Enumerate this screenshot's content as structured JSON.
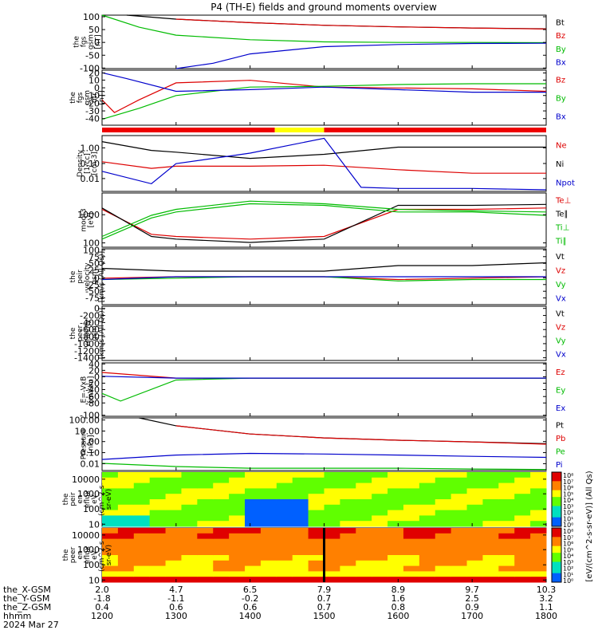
{
  "title": "P4 (TH-E) fields and ground moments overview",
  "panels": [
    {
      "ylabel": [
        "the",
        "fgs",
        "gsm",
        "[nT]"
      ],
      "ticks": [
        "100",
        "50",
        "0",
        "-50",
        "-100"
      ],
      "legend": [
        {
          "t": "Bt",
          "c": "#000000"
        },
        {
          "t": "Bz",
          "c": "#dd0000"
        },
        {
          "t": "By",
          "c": "#00bb00"
        },
        {
          "t": "Bx",
          "c": "#0000cc"
        }
      ]
    },
    {
      "ylabel": [
        "the",
        "fgs",
        "gsm",
        "dtr",
        "[nT]"
      ],
      "ticks": [
        "20",
        "10",
        "0",
        "-10",
        "-20",
        "-30",
        "-40"
      ],
      "legend": [
        {
          "t": "Bz",
          "c": "#dd0000"
        },
        {
          "t": "By",
          "c": "#00bb00"
        },
        {
          "t": "Bx",
          "c": "#0000cc"
        }
      ]
    },
    {
      "ylabel": [
        "Density",
        "[1/cc]",
        "[cm-3]"
      ],
      "ticks": [
        "1.00",
        "0.10",
        "0.01"
      ],
      "legend": [
        {
          "t": "Ne",
          "c": "#dd0000"
        },
        {
          "t": "Ni",
          "c": "#000000"
        },
        {
          "t": "Npot",
          "c": "#0000cc"
        }
      ]
    },
    {
      "ylabel": [
        "moqt3",
        "[eV]"
      ],
      "ticks": [
        "1000",
        "100"
      ],
      "legend": [
        {
          "t": "Te⊥",
          "c": "#dd0000"
        },
        {
          "t": "Te∥",
          "c": "#000000"
        },
        {
          "t": "Ti⊥",
          "c": "#00bb00"
        },
        {
          "t": "Ti∥",
          "c": "#00bb00"
        }
      ]
    },
    {
      "ylabel": [
        "the",
        "peir",
        "velocity",
        "gsm",
        "[km/s (All Qs)]"
      ],
      "ticks": [
        "100",
        "75",
        "50",
        "25",
        "0",
        "-25",
        "-50",
        "-75",
        "-100"
      ],
      "legend": [
        {
          "t": "Vt",
          "c": "#000000"
        },
        {
          "t": "Vz",
          "c": "#dd0000"
        },
        {
          "t": "Vy",
          "c": "#00bb00"
        },
        {
          "t": "Vx",
          "c": "#0000cc"
        }
      ]
    },
    {
      "ylabel": [
        "the",
        "peer",
        "velocity",
        "gsm",
        "[km/s (All Qs)]"
      ],
      "ticks": [
        "0",
        "-200",
        "-400",
        "-600",
        "-800",
        "-1000",
        "-1200",
        "-1400"
      ],
      "legend": [
        {
          "t": "Vt",
          "c": "#000000"
        },
        {
          "t": "Vz",
          "c": "#dd0000"
        },
        {
          "t": "Vy",
          "c": "#00bb00"
        },
        {
          "t": "Vx",
          "c": "#0000cc"
        }
      ]
    },
    {
      "ylabel": [
        "E=-VxB",
        "[mV/m]"
      ],
      "ticks": [
        "40",
        "20",
        "0",
        "-20",
        "-40",
        "-60",
        "-80",
        "-100"
      ],
      "legend": [
        {
          "t": "Ez",
          "c": "#dd0000"
        },
        {
          "t": "Ey",
          "c": "#00bb00"
        },
        {
          "t": "Ex",
          "c": "#0000cc"
        }
      ]
    },
    {
      "ylabel": [
        "Pressure",
        "[nPa]"
      ],
      "ticks": [
        "100.00",
        "10.00",
        "1.00",
        "0.10",
        "0.01"
      ],
      "legend": [
        {
          "t": "Pt",
          "c": "#000000"
        },
        {
          "t": "Pb",
          "c": "#dd0000"
        },
        {
          "t": "Pe",
          "c": "#00bb00"
        },
        {
          "t": "Pi",
          "c": "#0000cc"
        }
      ]
    },
    {
      "ylabel": [
        "the",
        "peir",
        "en",
        "eflux",
        "eV",
        "(cm^2-s-",
        "sr-eV)"
      ],
      "ticks": [
        "10000",
        "1000",
        "100",
        "10"
      ],
      "legend": []
    },
    {
      "ylabel": [
        "the",
        "peer",
        "en",
        "eflux",
        "eV",
        "(cm^2-s-",
        "sr-eV)"
      ],
      "ticks": [
        "10000",
        "1000",
        "100",
        "10"
      ],
      "legend": []
    }
  ],
  "colorbar": {
    "label": "[eV/(cm^2-s-sr-eV)] (All Qs)",
    "upper_ticks": [
      "10⁸",
      "10⁷",
      "10⁶",
      "10⁵",
      "10⁴",
      "10³",
      "10²",
      "10¹",
      "10⁰"
    ],
    "lower_ticks": [
      "10⁸",
      "10⁷",
      "10⁶",
      "10⁵",
      "10⁴",
      "10³",
      "10²",
      "10¹",
      "10⁰"
    ]
  },
  "xaxis": {
    "row_labels": [
      "the_X-GSM",
      "the_Y-GSM",
      "the_Z-GSM",
      "hhmm",
      "2024 Mar 27"
    ],
    "ticks": [
      {
        "x": "2.0",
        "y": "-1.8",
        "z": "0.4",
        "hhmm": "1200"
      },
      {
        "x": "4.7",
        "y": "-1.1",
        "z": "0.6",
        "hhmm": "1300"
      },
      {
        "x": "6.5",
        "y": "-0.2",
        "z": "0.6",
        "hhmm": "1400"
      },
      {
        "x": "7.9",
        "y": "0.7",
        "z": "0.7",
        "hhmm": "1500"
      },
      {
        "x": "8.9",
        "y": "1.6",
        "z": "0.8",
        "hhmm": "1600"
      },
      {
        "x": "9.7",
        "y": "2.5",
        "z": "0.9",
        "hhmm": "1700"
      },
      {
        "x": "10.3",
        "y": "3.2",
        "z": "1.1",
        "hhmm": "1800"
      }
    ]
  },
  "chart_data": {
    "type": "line",
    "title": "P4 (TH-E) fields and ground moments overview",
    "x_time_hhmm": [
      "1200",
      "1300",
      "1400",
      "1500",
      "1600",
      "1700",
      "1800"
    ],
    "mode_bar": [
      {
        "from": "1200",
        "to": "1420",
        "color": "red"
      },
      {
        "from": "1420",
        "to": "1500",
        "color": "yellow"
      },
      {
        "from": "1500",
        "to": "1800",
        "color": "red"
      }
    ],
    "panels": [
      {
        "name": "fgs gsm",
        "ylim": [
          -100,
          100
        ],
        "series": [
          {
            "name": "Bt",
            "x": [
              "1220",
              "1300",
              "1400",
              "1500",
              "1600",
              "1700",
              "1800"
            ],
            "values": [
              100,
              85,
              72,
              62,
              56,
              52,
              49
            ]
          },
          {
            "name": "Bz",
            "x": [
              "1300",
              "1400",
              "1500",
              "1600",
              "1700",
              "1800"
            ],
            "values": [
              85,
              72,
              62,
              56,
              52,
              48
            ]
          },
          {
            "name": "By",
            "x": [
              "1200",
              "1230",
              "1300",
              "1400",
              "1500",
              "1600",
              "1700",
              "1800"
            ],
            "values": [
              100,
              55,
              25,
              8,
              0,
              -2,
              -2,
              -3
            ]
          },
          {
            "name": "Bx",
            "x": [
              "1300",
              "1330",
              "1400",
              "1500",
              "1600",
              "1700",
              "1800"
            ],
            "values": [
              -100,
              -80,
              -45,
              -18,
              -10,
              -6,
              -5
            ]
          }
        ]
      },
      {
        "name": "fgs gsm dtr",
        "ylim": [
          -45,
          20
        ],
        "series": [
          {
            "name": "Bz",
            "x": [
              "1200",
              "1210",
              "1230",
              "1300",
              "1400",
              "1500",
              "1600",
              "1700",
              "1800"
            ],
            "values": [
              -15,
              -30,
              -15,
              5,
              8,
              0,
              -1,
              -2,
              -5
            ]
          },
          {
            "name": "By",
            "x": [
              "1200",
              "1230",
              "1300",
              "1400",
              "1500",
              "1600",
              "1700",
              "1800"
            ],
            "values": [
              -38,
              -25,
              -10,
              0,
              1,
              3,
              4,
              4
            ]
          },
          {
            "name": "Bx",
            "x": [
              "1200",
              "1220",
              "1300",
              "1400",
              "1500",
              "1600",
              "1700",
              "1800"
            ],
            "values": [
              17,
              10,
              -5,
              -3,
              0,
              -3,
              -6,
              -6
            ]
          }
        ]
      },
      {
        "name": "Density",
        "scale": "log",
        "ylim": [
          0.005,
          3
        ],
        "series": [
          {
            "name": "Ne",
            "x": [
              "1200",
              "1240",
              "1300",
              "1400",
              "1500",
              "1600",
              "1700",
              "1800"
            ],
            "values": [
              0.15,
              0.07,
              0.09,
              0.09,
              0.1,
              0.06,
              0.04,
              0.04
            ]
          },
          {
            "name": "Ni",
            "x": [
              "1200",
              "1240",
              "1300",
              "1400",
              "1500",
              "1600",
              "1700",
              "1800"
            ],
            "values": [
              1.5,
              0.55,
              0.45,
              0.22,
              0.35,
              0.8,
              0.8,
              0.8
            ]
          },
          {
            "name": "Npot",
            "x": [
              "1200",
              "1240",
              "1300",
              "1400",
              "1500",
              "1530",
              "1600",
              "1700",
              "1800"
            ],
            "values": [
              0.05,
              0.012,
              0.12,
              0.4,
              2.2,
              0.008,
              0.007,
              0.007,
              0.006
            ]
          }
        ]
      },
      {
        "name": "moqt3",
        "scale": "log",
        "ylim": [
          100,
          10000
        ],
        "series": [
          {
            "name": "Te⊥",
            "x": [
              "1200",
              "1240",
              "1300",
              "1400",
              "1500",
              "1600",
              "1700",
              "1800"
            ],
            "values": [
              2500,
              300,
              250,
              200,
              250,
              2500,
              2500,
              2800
            ]
          },
          {
            "name": "Te∥",
            "x": [
              "1200",
              "1240",
              "1300",
              "1400",
              "1500",
              "1600",
              "1700",
              "1800"
            ],
            "values": [
              2800,
              250,
              200,
              150,
              200,
              3500,
              3500,
              3800
            ]
          },
          {
            "name": "Ti⊥",
            "x": [
              "1200",
              "1240",
              "1300",
              "1400",
              "1500",
              "1600",
              "1700",
              "1800"
            ],
            "values": [
              200,
              1200,
              2000,
              4000,
              3500,
              2000,
              2000,
              1500
            ]
          },
          {
            "name": "Ti∥",
            "x": [
              "1200",
              "1240",
              "1300",
              "1400",
              "1500",
              "1600",
              "1700",
              "1800"
            ],
            "values": [
              250,
              1500,
              2500,
              5000,
              4000,
              2500,
              2200,
              2000
            ]
          }
        ]
      },
      {
        "name": "peir velocity gsm",
        "ylim": [
          -100,
          100
        ],
        "series": [
          {
            "name": "Vt",
            "x": [
              "1200",
              "1300",
              "1400",
              "1500",
              "1600",
              "1700",
              "1800"
            ],
            "values": [
              30,
              20,
              20,
              20,
              40,
              40,
              50
            ]
          },
          {
            "name": "Vz",
            "x": [
              "1200",
              "1300",
              "1400",
              "1500",
              "1600",
              "1700",
              "1800"
            ],
            "values": [
              -5,
              0,
              0,
              0,
              -10,
              -5,
              0
            ]
          },
          {
            "name": "Vy",
            "x": [
              "1200",
              "1300",
              "1400",
              "1500",
              "1600",
              "1700",
              "1800"
            ],
            "values": [
              -10,
              -5,
              0,
              0,
              -15,
              -10,
              -10
            ]
          },
          {
            "name": "Vx",
            "x": [
              "1200",
              "1300",
              "1400",
              "1500",
              "1600",
              "1700",
              "1800"
            ],
            "values": [
              -10,
              0,
              0,
              0,
              0,
              0,
              0
            ]
          }
        ]
      },
      {
        "name": "peer velocity gsm",
        "ylim": [
          -1500,
          100
        ],
        "series": []
      },
      {
        "name": "E=-VxB",
        "ylim": [
          -100,
          40
        ],
        "series": [
          {
            "name": "Ez",
            "x": [
              "1200",
              "1300",
              "1400",
              "1500",
              "1600",
              "1700",
              "1800"
            ],
            "values": [
              15,
              0,
              0,
              0,
              0,
              0,
              0
            ]
          },
          {
            "name": "Ey",
            "x": [
              "1200",
              "1215",
              "1300",
              "1400",
              "1500",
              "1600",
              "1700",
              "1800"
            ],
            "values": [
              -40,
              -60,
              -5,
              0,
              0,
              0,
              0,
              0
            ]
          },
          {
            "name": "Ex",
            "x": [
              "1200",
              "1300",
              "1400",
              "1500",
              "1600",
              "1700",
              "1800"
            ],
            "values": [
              5,
              0,
              0,
              0,
              0,
              0,
              0
            ]
          }
        ]
      },
      {
        "name": "Pressure",
        "scale": "log",
        "ylim": [
          0.01,
          100
        ],
        "series": [
          {
            "name": "Pt",
            "x": [
              "1230",
              "1300",
              "1400",
              "1500",
              "1600",
              "1700",
              "1800"
            ],
            "values": [
              100,
              25,
              6,
              3,
              2,
              1.5,
              1.1
            ]
          },
          {
            "name": "Pb",
            "x": [
              "1300",
              "1400",
              "1500",
              "1600",
              "1700",
              "1800"
            ],
            "values": [
              25,
              6,
              3,
              2,
              1.5,
              1.0
            ]
          },
          {
            "name": "Pe",
            "x": [
              "1200",
              "1300",
              "1400",
              "1500",
              "1600",
              "1700",
              "1800"
            ],
            "values": [
              0.035,
              0.02,
              0.015,
              0.015,
              0.015,
              0.013,
              0.012
            ]
          },
          {
            "name": "Pi",
            "x": [
              "1200",
              "1300",
              "1400",
              "1500",
              "1600",
              "1700",
              "1800"
            ],
            "values": [
              0.07,
              0.15,
              0.2,
              0.18,
              0.15,
              0.12,
              0.1
            ]
          }
        ]
      },
      {
        "name": "peir en eflux",
        "type": "heatmap",
        "ylim": [
          10,
          20000
        ],
        "scale": "log"
      },
      {
        "name": "peer en eflux",
        "type": "heatmap",
        "ylim": [
          10,
          20000
        ],
        "scale": "log"
      }
    ]
  }
}
